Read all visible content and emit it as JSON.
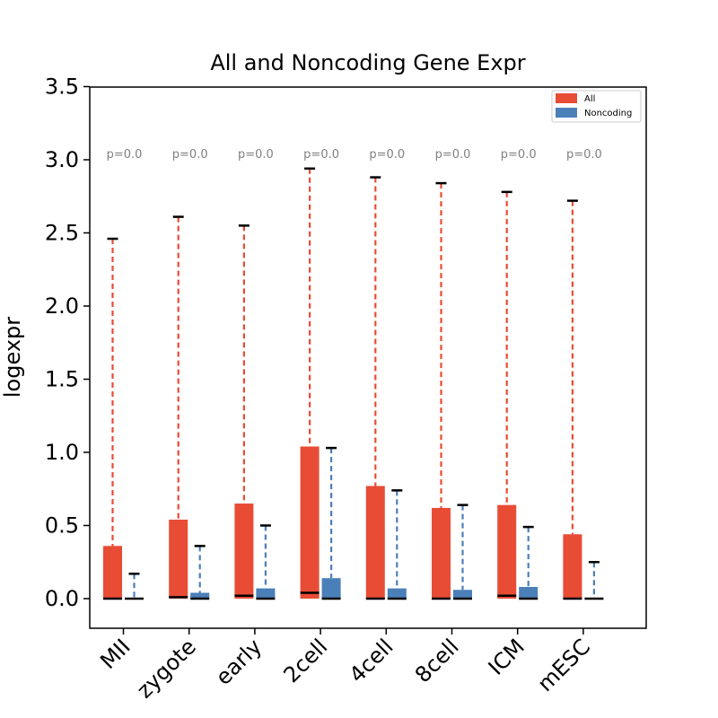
{
  "chart_data": {
    "type": "bar",
    "title": "All and Noncoding Gene Expr",
    "xlabel": "",
    "ylabel": "logexpr",
    "ylim": [
      -0.2,
      3.5
    ],
    "yticks": [
      "0.0",
      "0.5",
      "1.0",
      "1.5",
      "2.0",
      "2.5",
      "3.0",
      "3.5"
    ],
    "categories": [
      "MII",
      "zygote",
      "early",
      "2cell",
      "4cell",
      "8cell",
      "ICM",
      "mESC"
    ],
    "series": [
      {
        "name": "All",
        "color": "#e84c35",
        "values": [
          0.36,
          0.54,
          0.65,
          1.04,
          0.77,
          0.62,
          0.64,
          0.44
        ],
        "whisker_top": [
          2.46,
          2.61,
          2.55,
          2.94,
          2.88,
          2.84,
          2.78,
          2.72
        ],
        "median": [
          0.0,
          0.01,
          0.02,
          0.04,
          0.0,
          0.0,
          0.02,
          0.0
        ]
      },
      {
        "name": "Noncoding",
        "color": "#4b7fb8",
        "values": [
          0.0,
          0.04,
          0.07,
          0.14,
          0.07,
          0.06,
          0.08,
          0.0
        ],
        "whisker_top": [
          0.17,
          0.36,
          0.5,
          1.03,
          0.74,
          0.64,
          0.49,
          0.25
        ],
        "median": [
          0.0,
          0.0,
          0.0,
          0.0,
          0.0,
          0.0,
          0.0,
          0.0
        ]
      }
    ],
    "annotations": [
      "p=0.0",
      "p=0.0",
      "p=0.0",
      "p=0.0",
      "p=0.0",
      "p=0.0",
      "p=0.0",
      "p=0.0"
    ],
    "annotation_y": 3.0,
    "legend": {
      "placement": "top-right",
      "entries": [
        "All",
        "Noncoding"
      ]
    },
    "grid": false
  }
}
